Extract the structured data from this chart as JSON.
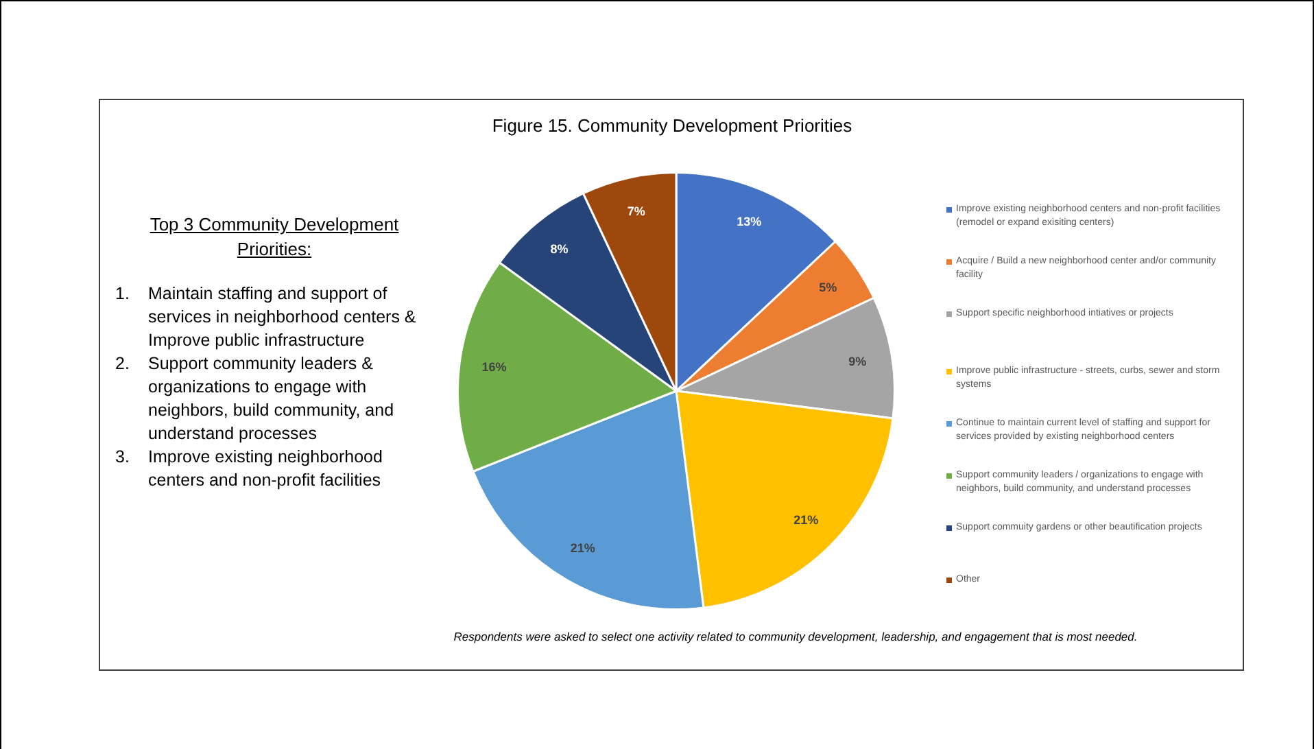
{
  "chart_data": {
    "type": "pie",
    "title": "Figure 15. Community Development Priorities",
    "categories": [
      "Improve existing neighborhood centers and non-profit facilities (remodel or expand exisiting centers)",
      "Acquire / Build a new neighborhood center and/or community facility",
      "Support specific neighborhood intiatives or projects",
      "Improve public infrastructure - streets, curbs, sewer and storm systems",
      "Continue to maintain current level of staffing and support for services provided by existing neighborhood centers",
      "Support community leaders / organizations to engage with neighbors, build community, and understand processes",
      "Support commuity gardens or other beautification projects",
      "Other"
    ],
    "values": [
      13,
      5,
      9,
      21,
      21,
      16,
      8,
      7
    ],
    "value_labels": [
      "13%",
      "5%",
      "9%",
      "21%",
      "21%",
      "16%",
      "8%",
      "7%"
    ],
    "colors": [
      "#4472c4",
      "#ed7d31",
      "#a5a5a5",
      "#ffc000",
      "#5b9bd5",
      "#70ad47",
      "#264478",
      "#9e480e"
    ],
    "legend": "right",
    "annotations": [
      "Top 3 Community Development Priorities:",
      "1. Maintain staffing and support of services in neighborhood centers & Improve public infrastructure",
      "2. Support community leaders & organizations to engage with neighbors, build community, and understand processes",
      "3. Improve existing neighborhood centers and non-profit facilities",
      "Respondents were asked to select one activity related to community development, leadership, and engagement that is most needed."
    ]
  }
}
